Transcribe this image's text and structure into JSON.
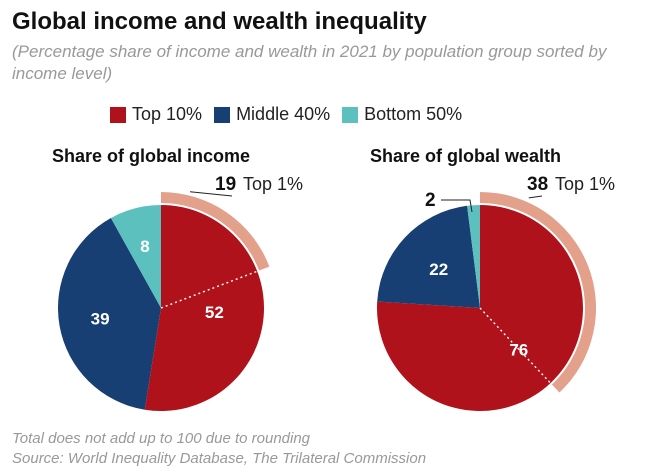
{
  "title": "Global income and wealth inequality",
  "subtitle": "(Percentage share of income and wealth in 2021 by population group sorted by income level)",
  "legend": [
    {
      "label": "Top 10%",
      "color": "#b0121b"
    },
    {
      "label": "Middle 40%",
      "color": "#173f74"
    },
    {
      "label": "Bottom 50%",
      "color": "#5bc0be"
    }
  ],
  "top1_color": "#e3a08a",
  "footer": {
    "note": "Total does not add up to 100 due to rounding",
    "source": "Source: World Inequality Database, The Trilateral Commission"
  },
  "chart_data": [
    {
      "type": "pie",
      "title": "Share of global income",
      "categories": [
        "Top 10%",
        "Middle 40%",
        "Bottom 50%"
      ],
      "values": [
        52,
        39,
        8
      ],
      "labels": [
        "52",
        "39",
        "8"
      ],
      "top1": {
        "value": 19,
        "value_label": "19",
        "label": "Top 1%"
      }
    },
    {
      "type": "pie",
      "title": "Share of global wealth",
      "categories": [
        "Top 10%",
        "Middle 40%",
        "Bottom 50%"
      ],
      "values": [
        76,
        22,
        2
      ],
      "labels": [
        "76",
        "22",
        "2"
      ],
      "top1": {
        "value": 38,
        "value_label": "38",
        "label": "Top 1%"
      }
    }
  ]
}
